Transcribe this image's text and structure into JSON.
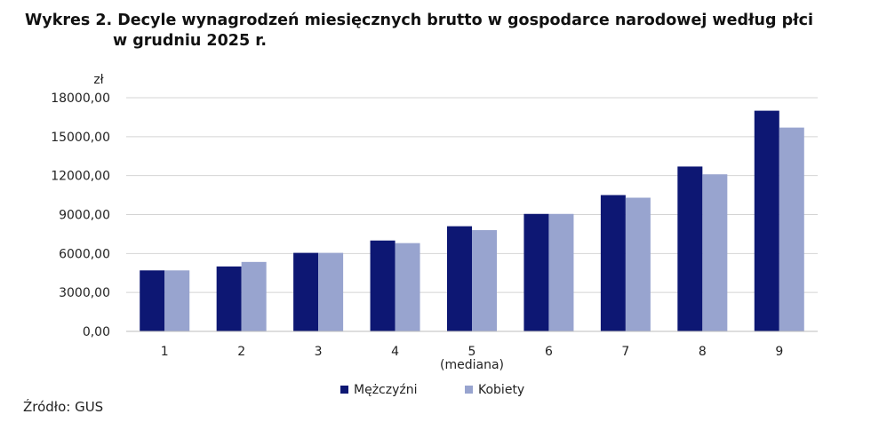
{
  "header": {
    "title_line1": "Wykres 2. Decyle wynagrodzeń miesięcznych brutto w gospodarce narodowej według płci",
    "title_line2": "w grudniu 2025 r."
  },
  "chart_data": {
    "type": "bar",
    "title": "Wykres 2. Decyle wynagrodzeń miesięcznych brutto w gospodarce narodowej według płci w grudniu 2025 r.",
    "ylabel": "zł",
    "xlabel": "",
    "ylim": [
      0,
      18000
    ],
    "yticks": [
      0,
      3000,
      6000,
      9000,
      12000,
      15000,
      18000
    ],
    "ytick_labels": [
      "0,00",
      "3000,00",
      "6000,00",
      "9000,00",
      "12000,00",
      "15000,00",
      "18000,00"
    ],
    "categories": [
      "1",
      "2",
      "3",
      "4",
      "5",
      "6",
      "7",
      "8",
      "9"
    ],
    "category_sublabels": [
      "",
      "",
      "",
      "",
      "(mediana)",
      "",
      "",
      "",
      ""
    ],
    "series": [
      {
        "name": "Mężczyźni",
        "color": "#0d1773",
        "values": [
          4700,
          5000,
          6050,
          7000,
          8100,
          9050,
          10500,
          12700,
          17000
        ]
      },
      {
        "name": "Kobiety",
        "color": "#98a4cf",
        "values": [
          4700,
          5350,
          6050,
          6800,
          7800,
          9050,
          10300,
          12100,
          15700
        ]
      }
    ],
    "grid": true,
    "legend_position": "bottom"
  },
  "footer": {
    "source": "Źródło: GUS"
  }
}
